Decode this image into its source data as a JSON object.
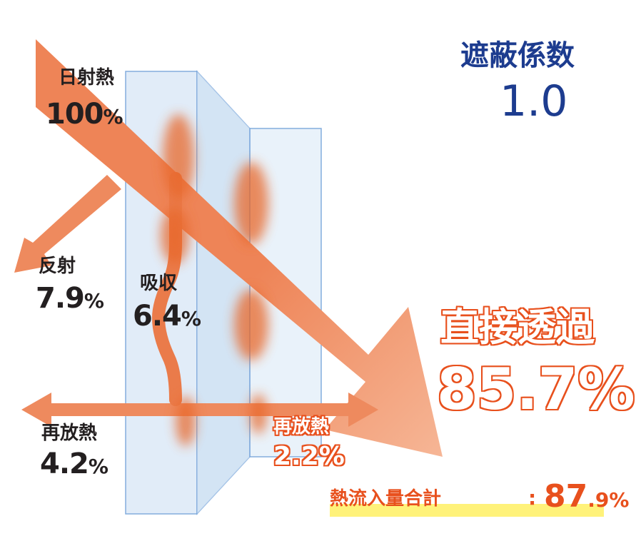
{
  "shading_coefficient": {
    "label": "遮蔽係数",
    "value": "1.0"
  },
  "solar_heat": {
    "label": "日射熱",
    "value": "100",
    "unit": "%"
  },
  "reflection": {
    "label": "反射",
    "value": "7.9",
    "unit": "%"
  },
  "absorption": {
    "label": "吸収",
    "value": "6.4",
    "unit": "%"
  },
  "reradiation_outside": {
    "label": "再放熱",
    "value": "4.2",
    "unit": "%"
  },
  "reradiation_inside": {
    "label": "再放熱",
    "value": "2.2",
    "unit": "%"
  },
  "direct_transmission": {
    "label": "直接透過",
    "value": "85.7",
    "unit": "%"
  },
  "total_heat_inflow": {
    "label": "熱流入量合計",
    "separator": ":",
    "value_int": "87",
    "value_dec": ".9",
    "unit": "%"
  },
  "colors": {
    "arrow": "#ee7d4c",
    "glass": "#d8e8f6",
    "glass_edge": "#6f9fd8",
    "title_blue": "#1d3c8f",
    "accent_orange": "#e8501d",
    "highlight": "#fff27a"
  }
}
